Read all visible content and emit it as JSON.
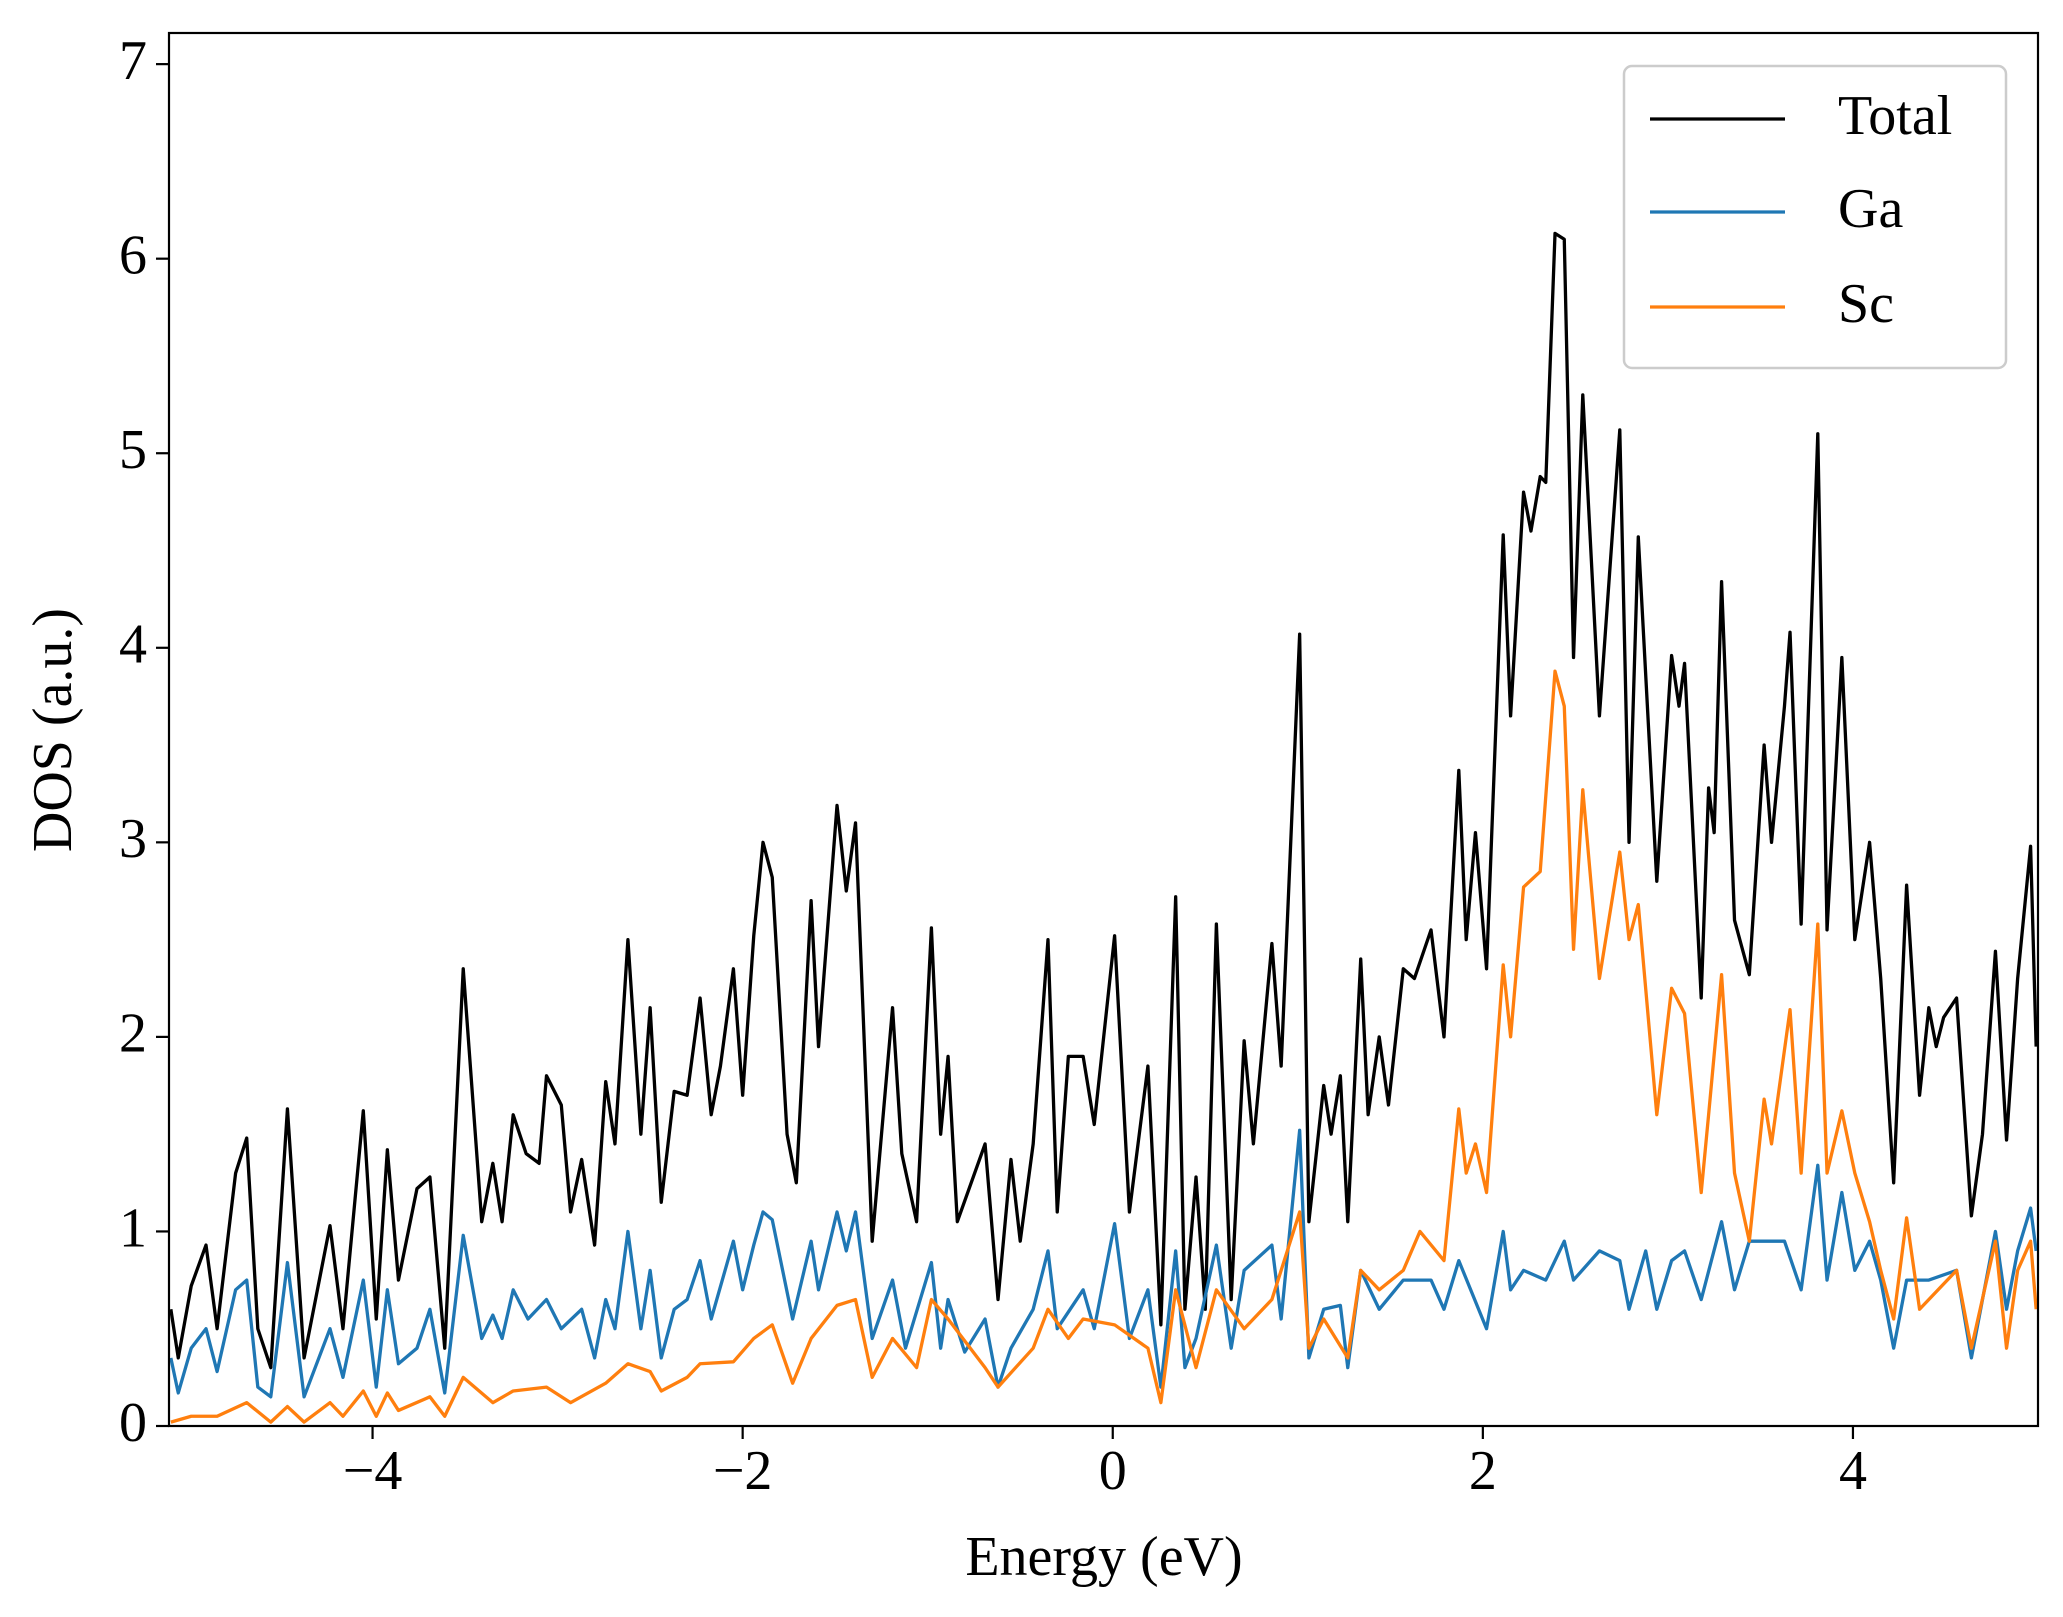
{
  "chart_data": {
    "type": "line",
    "xlabel": "Energy (eV)",
    "ylabel": "DOS (a.u.)",
    "xlim": [
      -5.1,
      5.0
    ],
    "ylim": [
      0,
      7.16
    ],
    "xticks": [
      {
        "value": -4,
        "label": "−4"
      },
      {
        "value": -2,
        "label": "−2"
      },
      0,
      2,
      4
    ],
    "yticks": [
      0,
      1,
      2,
      3,
      4,
      5,
      6,
      7
    ],
    "legend": "upper right",
    "series": [
      {
        "name": "Total",
        "color": "#000000",
        "x": [
          -5.09,
          -5.05,
          -4.98,
          -4.9,
          -4.84,
          -4.74,
          -4.68,
          -4.62,
          -4.55,
          -4.46,
          -4.37,
          -4.23,
          -4.16,
          -4.05,
          -3.98,
          -3.92,
          -3.86,
          -3.76,
          -3.69,
          -3.61,
          -3.51,
          -3.41,
          -3.35,
          -3.3,
          -3.24,
          -3.17,
          -3.1,
          -3.06,
          -2.98,
          -2.93,
          -2.87,
          -2.8,
          -2.74,
          -2.69,
          -2.62,
          -2.55,
          -2.5,
          -2.44,
          -2.37,
          -2.3,
          -2.23,
          -2.17,
          -2.12,
          -2.05,
          -2.0,
          -1.94,
          -1.89,
          -1.84,
          -1.76,
          -1.71,
          -1.63,
          -1.59,
          -1.49,
          -1.44,
          -1.39,
          -1.3,
          -1.19,
          -1.14,
          -1.06,
          -0.98,
          -0.93,
          -0.89,
          -0.84,
          -0.69,
          -0.62,
          -0.55,
          -0.5,
          -0.43,
          -0.35,
          -0.3,
          -0.24,
          -0.16,
          -0.1,
          0.01,
          0.09,
          0.19,
          0.26,
          0.34,
          0.39,
          0.45,
          0.5,
          0.56,
          0.64,
          0.71,
          0.76,
          0.86,
          0.91,
          1.01,
          1.06,
          1.14,
          1.18,
          1.23,
          1.27,
          1.34,
          1.38,
          1.44,
          1.49,
          1.57,
          1.63,
          1.72,
          1.79,
          1.87,
          1.91,
          1.96,
          2.02,
          2.11,
          2.15,
          2.22,
          2.26,
          2.31,
          2.34,
          2.39,
          2.44,
          2.49,
          2.54,
          2.63,
          2.74,
          2.79,
          2.84,
          2.94,
          3.02,
          3.06,
          3.09,
          3.18,
          3.22,
          3.25,
          3.29,
          3.36,
          3.44,
          3.52,
          3.56,
          3.63,
          3.66,
          3.72,
          3.81,
          3.86,
          3.94,
          4.01,
          4.09,
          4.15,
          4.22,
          4.29,
          4.36,
          4.41,
          4.45,
          4.49,
          4.56,
          4.64,
          4.7,
          4.77,
          4.83,
          4.89,
          4.96,
          4.99
        ],
        "values": [
          0.6,
          0.35,
          0.72,
          0.93,
          0.5,
          1.3,
          1.48,
          0.5,
          0.3,
          1.63,
          0.35,
          1.03,
          0.5,
          1.62,
          0.55,
          1.42,
          0.75,
          1.22,
          1.28,
          0.4,
          2.35,
          1.05,
          1.35,
          1.05,
          1.6,
          1.4,
          1.35,
          1.8,
          1.65,
          1.1,
          1.37,
          0.93,
          1.77,
          1.45,
          2.5,
          1.5,
          2.15,
          1.15,
          1.72,
          1.7,
          2.2,
          1.6,
          1.85,
          2.35,
          1.7,
          2.52,
          3.0,
          2.82,
          1.5,
          1.25,
          2.7,
          1.95,
          3.19,
          2.75,
          3.1,
          0.95,
          2.15,
          1.4,
          1.05,
          2.56,
          1.5,
          1.9,
          1.05,
          1.45,
          0.65,
          1.37,
          0.95,
          1.45,
          2.5,
          1.1,
          1.9,
          1.9,
          1.55,
          2.52,
          1.1,
          1.85,
          0.52,
          2.72,
          0.6,
          1.28,
          0.6,
          2.58,
          0.65,
          1.98,
          1.45,
          2.48,
          1.85,
          4.07,
          1.05,
          1.75,
          1.5,
          1.8,
          1.05,
          2.4,
          1.6,
          2.0,
          1.65,
          2.35,
          2.3,
          2.55,
          2.0,
          3.37,
          2.5,
          3.05,
          2.35,
          4.58,
          3.65,
          4.8,
          4.6,
          4.88,
          4.85,
          6.13,
          6.1,
          3.95,
          5.3,
          3.65,
          5.12,
          3.0,
          4.57,
          2.8,
          3.96,
          3.7,
          3.92,
          2.2,
          3.28,
          3.05,
          4.34,
          2.6,
          2.32,
          3.5,
          3.0,
          3.7,
          4.08,
          2.58,
          5.1,
          2.55,
          3.95,
          2.5,
          3.0,
          2.3,
          1.25,
          2.78,
          1.7,
          2.15,
          1.95,
          2.1,
          2.2,
          1.08,
          1.5,
          2.44,
          1.47,
          2.3,
          2.98,
          1.95
        ]
      },
      {
        "name": "Ga",
        "color": "#1f77b4",
        "x": [
          -5.09,
          -5.05,
          -4.98,
          -4.9,
          -4.84,
          -4.74,
          -4.68,
          -4.62,
          -4.55,
          -4.46,
          -4.37,
          -4.23,
          -4.16,
          -4.05,
          -3.98,
          -3.92,
          -3.86,
          -3.76,
          -3.69,
          -3.61,
          -3.51,
          -3.41,
          -3.35,
          -3.3,
          -3.24,
          -3.16,
          -3.06,
          -2.98,
          -2.87,
          -2.8,
          -2.74,
          -2.69,
          -2.62,
          -2.55,
          -2.5,
          -2.44,
          -2.37,
          -2.3,
          -2.23,
          -2.17,
          -2.05,
          -2.0,
          -1.94,
          -1.89,
          -1.84,
          -1.73,
          -1.63,
          -1.59,
          -1.49,
          -1.44,
          -1.39,
          -1.3,
          -1.19,
          -1.12,
          -0.98,
          -0.93,
          -0.89,
          -0.8,
          -0.69,
          -0.62,
          -0.55,
          -0.43,
          -0.35,
          -0.3,
          -0.16,
          -0.1,
          0.01,
          0.09,
          0.19,
          0.26,
          0.34,
          0.39,
          0.45,
          0.56,
          0.64,
          0.71,
          0.86,
          0.91,
          1.01,
          1.06,
          1.14,
          1.23,
          1.27,
          1.34,
          1.44,
          1.57,
          1.72,
          1.79,
          1.87,
          2.02,
          2.11,
          2.15,
          2.22,
          2.34,
          2.44,
          2.49,
          2.63,
          2.74,
          2.79,
          2.88,
          2.94,
          3.02,
          3.09,
          3.18,
          3.29,
          3.36,
          3.44,
          3.52,
          3.63,
          3.72,
          3.81,
          3.86,
          3.94,
          4.01,
          4.09,
          4.15,
          4.22,
          4.29,
          4.41,
          4.56,
          4.64,
          4.77,
          4.83,
          4.89,
          4.96,
          4.99
        ],
        "values": [
          0.35,
          0.17,
          0.4,
          0.5,
          0.28,
          0.7,
          0.75,
          0.2,
          0.15,
          0.84,
          0.15,
          0.5,
          0.25,
          0.75,
          0.2,
          0.7,
          0.32,
          0.4,
          0.6,
          0.17,
          0.98,
          0.45,
          0.57,
          0.45,
          0.7,
          0.55,
          0.65,
          0.5,
          0.6,
          0.35,
          0.65,
          0.5,
          1.0,
          0.5,
          0.8,
          0.35,
          0.6,
          0.65,
          0.85,
          0.55,
          0.95,
          0.7,
          0.93,
          1.1,
          1.06,
          0.55,
          0.95,
          0.7,
          1.1,
          0.9,
          1.1,
          0.45,
          0.75,
          0.4,
          0.84,
          0.4,
          0.65,
          0.38,
          0.55,
          0.2,
          0.4,
          0.6,
          0.9,
          0.5,
          0.7,
          0.5,
          1.04,
          0.45,
          0.7,
          0.2,
          0.9,
          0.3,
          0.45,
          0.93,
          0.4,
          0.8,
          0.93,
          0.55,
          1.52,
          0.35,
          0.6,
          0.62,
          0.3,
          0.8,
          0.6,
          0.75,
          0.75,
          0.6,
          0.85,
          0.5,
          1.0,
          0.7,
          0.8,
          0.75,
          0.95,
          0.75,
          0.9,
          0.85,
          0.6,
          0.9,
          0.6,
          0.85,
          0.9,
          0.65,
          1.05,
          0.7,
          0.95,
          0.95,
          0.95,
          0.7,
          1.34,
          0.75,
          1.2,
          0.8,
          0.95,
          0.75,
          0.4,
          0.75,
          0.75,
          0.8,
          0.35,
          1.0,
          0.6,
          0.9,
          1.12,
          0.9
        ]
      },
      {
        "name": "Sc",
        "color": "#ff7f0e",
        "x": [
          -5.09,
          -4.98,
          -4.84,
          -4.68,
          -4.55,
          -4.46,
          -4.37,
          -4.23,
          -4.16,
          -4.05,
          -3.98,
          -3.92,
          -3.86,
          -3.69,
          -3.61,
          -3.51,
          -3.35,
          -3.24,
          -3.06,
          -2.93,
          -2.74,
          -2.62,
          -2.5,
          -2.44,
          -2.3,
          -2.23,
          -2.05,
          -1.94,
          -1.84,
          -1.73,
          -1.63,
          -1.49,
          -1.39,
          -1.3,
          -1.19,
          -1.06,
          -0.98,
          -0.89,
          -0.69,
          -0.62,
          -0.43,
          -0.35,
          -0.24,
          -0.16,
          0.01,
          0.19,
          0.26,
          0.34,
          0.45,
          0.56,
          0.71,
          0.86,
          1.01,
          1.06,
          1.14,
          1.27,
          1.34,
          1.44,
          1.57,
          1.66,
          1.79,
          1.87,
          1.91,
          1.96,
          2.02,
          2.11,
          2.15,
          2.22,
          2.31,
          2.39,
          2.44,
          2.49,
          2.54,
          2.63,
          2.74,
          2.79,
          2.84,
          2.94,
          3.02,
          3.09,
          3.18,
          3.22,
          3.29,
          3.36,
          3.44,
          3.52,
          3.56,
          3.66,
          3.72,
          3.81,
          3.86,
          3.94,
          4.01,
          4.09,
          4.15,
          4.22,
          4.29,
          4.36,
          4.56,
          4.64,
          4.77,
          4.83,
          4.89,
          4.96,
          4.99
        ],
        "values": [
          0.02,
          0.05,
          0.05,
          0.12,
          0.02,
          0.1,
          0.02,
          0.12,
          0.05,
          0.18,
          0.05,
          0.17,
          0.08,
          0.15,
          0.05,
          0.25,
          0.12,
          0.18,
          0.2,
          0.12,
          0.22,
          0.32,
          0.28,
          0.18,
          0.25,
          0.32,
          0.33,
          0.45,
          0.52,
          0.22,
          0.45,
          0.62,
          0.65,
          0.25,
          0.45,
          0.3,
          0.65,
          0.55,
          0.3,
          0.2,
          0.4,
          0.6,
          0.45,
          0.55,
          0.52,
          0.4,
          0.12,
          0.7,
          0.3,
          0.7,
          0.5,
          0.65,
          1.1,
          0.4,
          0.55,
          0.35,
          0.8,
          0.7,
          0.8,
          1.0,
          0.85,
          1.63,
          1.3,
          1.45,
          1.2,
          2.37,
          2.0,
          2.77,
          2.85,
          3.88,
          3.7,
          2.45,
          3.27,
          2.3,
          2.95,
          2.5,
          2.68,
          1.6,
          2.25,
          2.12,
          1.2,
          1.6,
          2.32,
          1.3,
          0.95,
          1.68,
          1.45,
          2.14,
          1.3,
          2.58,
          1.3,
          1.62,
          1.3,
          1.05,
          0.8,
          0.55,
          1.07,
          0.6,
          0.8,
          0.4,
          0.95,
          0.4,
          0.8,
          0.95,
          0.6
        ]
      }
    ]
  }
}
